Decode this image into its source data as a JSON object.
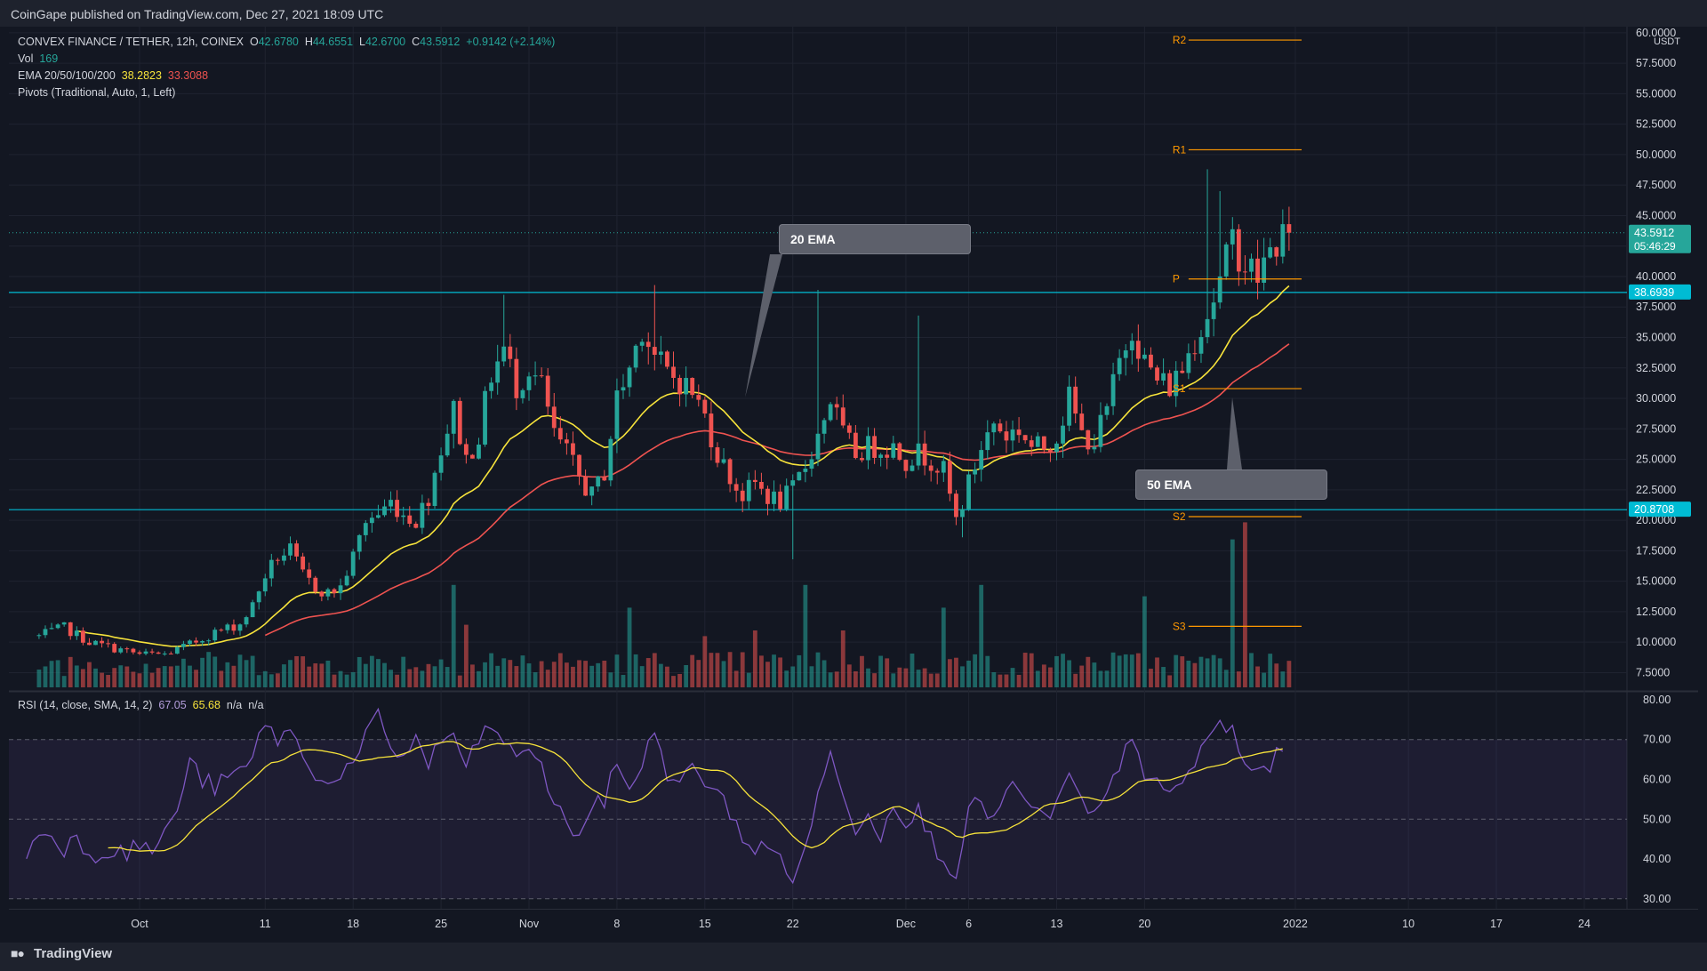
{
  "header": {
    "publisher": "CoinGape published on TradingView.com, Dec 27, 2021 18:09 UTC"
  },
  "legend": {
    "symbol": "CONVEX FINANCE / TETHER, 12h, COINEX",
    "open_label": "O",
    "open": "42.6780",
    "high_label": "H",
    "high": "44.6551",
    "low_label": "L",
    "low": "42.6700",
    "close_label": "C",
    "close": "43.5912",
    "change": "+0.9142 (+2.14%)",
    "vol_label": "Vol",
    "vol": "169",
    "ema_label": "EMA 20/50/100/200",
    "ema20": "38.2823",
    "ema50": "33.3088",
    "pivots": "Pivots (Traditional, Auto, 1, Left)"
  },
  "rsi_legend": {
    "label": "RSI (14, close, SMA, 14, 2)",
    "rsi": "67.05",
    "sma": "65.68",
    "na1": "n/a",
    "na2": "n/a"
  },
  "footer": {
    "brand": "TradingView"
  },
  "callouts": {
    "ema20": "20 EMA",
    "ema50": "50 EMA"
  },
  "colors": {
    "up": "#26a69a",
    "down": "#ef5350",
    "ema20": "#f7e33b",
    "ema50": "#ef5350",
    "pivot": "#ff9800",
    "hline": "#00bcd4",
    "rsi": "#7e57c2",
    "rsi_sma": "#f7e33b"
  },
  "chart_data": {
    "type": "candlestick",
    "title": "CONVEX FINANCE / TETHER, 12h, COINEX",
    "price_unit": "USDT",
    "y_ticks": [
      "60.0000",
      "57.5000",
      "55.0000",
      "52.5000",
      "50.0000",
      "47.5000",
      "45.0000",
      "42.5000",
      "40.0000",
      "37.5000",
      "35.0000",
      "32.5000",
      "30.0000",
      "27.5000",
      "25.0000",
      "22.5000",
      "20.0000",
      "17.5000",
      "15.0000",
      "12.5000",
      "10.0000",
      "7.5000"
    ],
    "x_ticks": [
      {
        "label": "Oct",
        "day": 8
      },
      {
        "label": "11",
        "day": 18
      },
      {
        "label": "18",
        "day": 25
      },
      {
        "label": "25",
        "day": 32
      },
      {
        "label": "Nov",
        "day": 39
      },
      {
        "label": "8",
        "day": 46
      },
      {
        "label": "15",
        "day": 53
      },
      {
        "label": "22",
        "day": 60
      },
      {
        "label": "Dec",
        "day": 69
      },
      {
        "label": "6",
        "day": 74
      },
      {
        "label": "13",
        "day": 81
      },
      {
        "label": "20",
        "day": 88
      },
      {
        "label": "2022",
        "day": 100
      },
      {
        "label": "10",
        "day": 109
      },
      {
        "label": "17",
        "day": 116
      },
      {
        "label": "24",
        "day": 123
      }
    ],
    "ylim": [
      6.0,
      60.5
    ],
    "day_range": [
      -2.4,
      126.4
    ],
    "horizontal_levels": [
      38.6939,
      20.8708
    ],
    "price_labels": [
      {
        "text": "43.5912",
        "sub": "05:46:29",
        "value": 43.5912,
        "color": "#26a69a"
      },
      {
        "text": "38.6939",
        "value": 38.6939,
        "color": "#00bcd4"
      },
      {
        "text": "20.8708",
        "value": 20.8708,
        "color": "#00bcd4"
      }
    ],
    "pivots": [
      {
        "name": "R2",
        "value": 59.4
      },
      {
        "name": "R1",
        "value": 50.4
      },
      {
        "name": "P",
        "value": 39.8
      },
      {
        "name": "S1",
        "value": 30.8
      },
      {
        "name": "S2",
        "value": 20.3
      },
      {
        "name": "S3",
        "value": 11.3
      }
    ],
    "pivot_start_day": 91.5,
    "pivot_end_day": 100.5,
    "rsi_ylim": [
      27.5,
      82.0
    ],
    "rsi_ticks": [
      "80.00",
      "70.00",
      "60.00",
      "50.00",
      "40.00",
      "30.00"
    ],
    "rsi_band": [
      30,
      70
    ],
    "rsi_midline": 50,
    "anchors": [
      [
        0,
        10.5
      ],
      [
        2,
        11.2
      ],
      [
        4,
        10.0
      ],
      [
        6,
        9.5
      ],
      [
        8,
        9.0
      ],
      [
        10,
        9.0
      ],
      [
        12,
        9.8
      ],
      [
        14,
        10.8
      ],
      [
        16,
        11.5
      ],
      [
        17,
        13.0
      ],
      [
        18,
        15.5
      ],
      [
        19,
        17.0
      ],
      [
        20,
        17.5
      ],
      [
        21,
        15.5
      ],
      [
        22,
        14.5
      ],
      [
        23,
        14.0
      ],
      [
        24,
        14.5
      ],
      [
        25,
        17.0
      ],
      [
        26,
        20.0
      ],
      [
        27,
        20.5
      ],
      [
        28,
        21.5
      ],
      [
        29,
        20.5
      ],
      [
        30,
        20.0
      ],
      [
        31,
        22.0
      ],
      [
        32,
        26.0
      ],
      [
        33,
        29.0
      ],
      [
        34,
        25.0
      ],
      [
        35,
        27.0
      ],
      [
        36,
        32.0
      ],
      [
        37,
        34.0
      ],
      [
        38,
        31.0
      ],
      [
        39,
        32.5
      ],
      [
        40,
        31.0
      ],
      [
        41,
        27.0
      ],
      [
        42,
        25.5
      ],
      [
        43,
        23.5
      ],
      [
        44,
        22.0
      ],
      [
        45,
        24.0
      ],
      [
        46,
        30.0
      ],
      [
        47,
        32.5
      ],
      [
        48,
        36.0
      ],
      [
        49,
        33.5
      ],
      [
        50,
        32.0
      ],
      [
        51,
        31.5
      ],
      [
        52,
        30.5
      ],
      [
        53,
        28.5
      ],
      [
        54,
        25.5
      ],
      [
        55,
        23.5
      ],
      [
        56,
        22.0
      ],
      [
        57,
        23.0
      ],
      [
        58,
        22.0
      ],
      [
        59,
        21.5
      ],
      [
        60,
        22.5
      ],
      [
        61,
        24.5
      ],
      [
        62,
        27.0
      ],
      [
        63,
        30.0
      ],
      [
        64,
        27.0
      ],
      [
        65,
        25.5
      ],
      [
        66,
        26.0
      ],
      [
        67,
        26.0
      ],
      [
        68,
        26.0
      ],
      [
        69,
        25.0
      ],
      [
        70,
        25.5
      ],
      [
        71,
        25.0
      ],
      [
        72,
        24.0
      ],
      [
        73,
        20.0
      ],
      [
        74,
        23.0
      ],
      [
        75,
        26.0
      ],
      [
        76,
        28.0
      ],
      [
        77,
        27.0
      ],
      [
        78,
        27.5
      ],
      [
        79,
        26.0
      ],
      [
        80,
        26.0
      ],
      [
        81,
        27.0
      ],
      [
        82,
        30.0
      ],
      [
        83,
        27.0
      ],
      [
        84,
        26.5
      ],
      [
        85,
        29.0
      ],
      [
        86,
        33.0
      ],
      [
        87,
        36.0
      ],
      [
        88,
        33.0
      ],
      [
        89,
        31.5
      ],
      [
        90,
        31.0
      ],
      [
        91,
        32.5
      ],
      [
        92,
        35.0
      ],
      [
        93,
        37.0
      ],
      [
        94,
        39.5
      ],
      [
        95,
        43.0
      ],
      [
        96,
        41.0
      ],
      [
        97,
        40.0
      ],
      [
        98,
        42.0
      ],
      [
        99,
        43.5
      ]
    ],
    "volume_spikes": [
      [
        33,
        9.0
      ],
      [
        34,
        5.5
      ],
      [
        36,
        3.0
      ],
      [
        47,
        7.0
      ],
      [
        53,
        4.5
      ],
      [
        57,
        5.0
      ],
      [
        61,
        9.0
      ],
      [
        64,
        5.0
      ],
      [
        72,
        7.0
      ],
      [
        75,
        9.0
      ],
      [
        80,
        2.0
      ],
      [
        88,
        8.0
      ],
      [
        95,
        13.0
      ],
      [
        96,
        14.5
      ]
    ],
    "rsi": {
      "last": 67.05,
      "sma_last": 65.68,
      "anchors": [
        [
          -1,
          40
        ],
        [
          0,
          47
        ],
        [
          1,
          46
        ],
        [
          2,
          43
        ],
        [
          3,
          45
        ],
        [
          4,
          42
        ],
        [
          5,
          41
        ],
        [
          6,
          43
        ],
        [
          7,
          41
        ],
        [
          8,
          44
        ],
        [
          9,
          42
        ],
        [
          10,
          46
        ],
        [
          11,
          53
        ],
        [
          12,
          64
        ],
        [
          13,
          60
        ],
        [
          14,
          58
        ],
        [
          15,
          60
        ],
        [
          16,
          62
        ],
        [
          17,
          65
        ],
        [
          18,
          75
        ],
        [
          19,
          70
        ],
        [
          20,
          72
        ],
        [
          21,
          66
        ],
        [
          22,
          62
        ],
        [
          23,
          58
        ],
        [
          24,
          62
        ],
        [
          25,
          63
        ],
        [
          26,
          70
        ],
        [
          27,
          76
        ],
        [
          28,
          68
        ],
        [
          29,
          66
        ],
        [
          30,
          70
        ],
        [
          31,
          64
        ],
        [
          32,
          69
        ],
        [
          33,
          72
        ],
        [
          34,
          62
        ],
        [
          35,
          70
        ],
        [
          36,
          74
        ],
        [
          37,
          68
        ],
        [
          38,
          66
        ],
        [
          39,
          69
        ],
        [
          40,
          62
        ],
        [
          41,
          55
        ],
        [
          42,
          48
        ],
        [
          43,
          47
        ],
        [
          44,
          52
        ],
        [
          45,
          55
        ],
        [
          46,
          64
        ],
        [
          47,
          58
        ],
        [
          48,
          64
        ],
        [
          49,
          72
        ],
        [
          50,
          62
        ],
        [
          51,
          58
        ],
        [
          52,
          63
        ],
        [
          53,
          60
        ],
        [
          54,
          56
        ],
        [
          55,
          52
        ],
        [
          56,
          46
        ],
        [
          57,
          42
        ],
        [
          58,
          43
        ],
        [
          59,
          40
        ],
        [
          60,
          36
        ],
        [
          61,
          41
        ],
        [
          62,
          58
        ],
        [
          63,
          66
        ],
        [
          64,
          55
        ],
        [
          65,
          48
        ],
        [
          66,
          53
        ],
        [
          67,
          45
        ],
        [
          68,
          55
        ],
        [
          69,
          50
        ],
        [
          70,
          52
        ],
        [
          71,
          45
        ],
        [
          72,
          40
        ],
        [
          73,
          37
        ],
        [
          74,
          52
        ],
        [
          75,
          54
        ],
        [
          76,
          50
        ],
        [
          77,
          56
        ],
        [
          78,
          58
        ],
        [
          79,
          52
        ],
        [
          80,
          50
        ],
        [
          81,
          54
        ],
        [
          82,
          60
        ],
        [
          83,
          54
        ],
        [
          84,
          50
        ],
        [
          85,
          56
        ],
        [
          86,
          62
        ],
        [
          87,
          72
        ],
        [
          88,
          62
        ],
        [
          89,
          58
        ],
        [
          90,
          55
        ],
        [
          91,
          60
        ],
        [
          92,
          64
        ],
        [
          93,
          70
        ],
        [
          94,
          74
        ],
        [
          95,
          72
        ],
        [
          96,
          63
        ],
        [
          97,
          62
        ],
        [
          98,
          64
        ],
        [
          99,
          67
        ]
      ]
    }
  }
}
